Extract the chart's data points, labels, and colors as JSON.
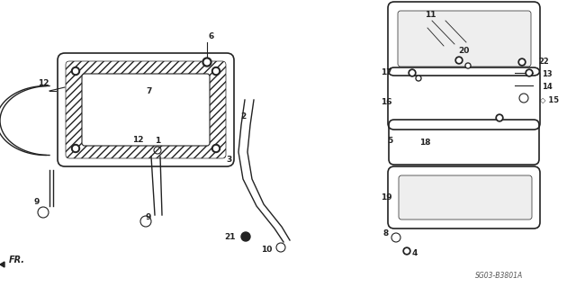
{
  "bg_color": "#ffffff",
  "diagram_color": "#222222",
  "fig_width": 6.4,
  "fig_height": 3.19,
  "watermark": "SG03-B3801A",
  "scratch_lines": [
    [
      4.8,
      2.96,
      5.05,
      2.7
    ],
    [
      4.95,
      2.96,
      5.18,
      2.72
    ],
    [
      4.75,
      2.88,
      4.93,
      2.68
    ]
  ]
}
